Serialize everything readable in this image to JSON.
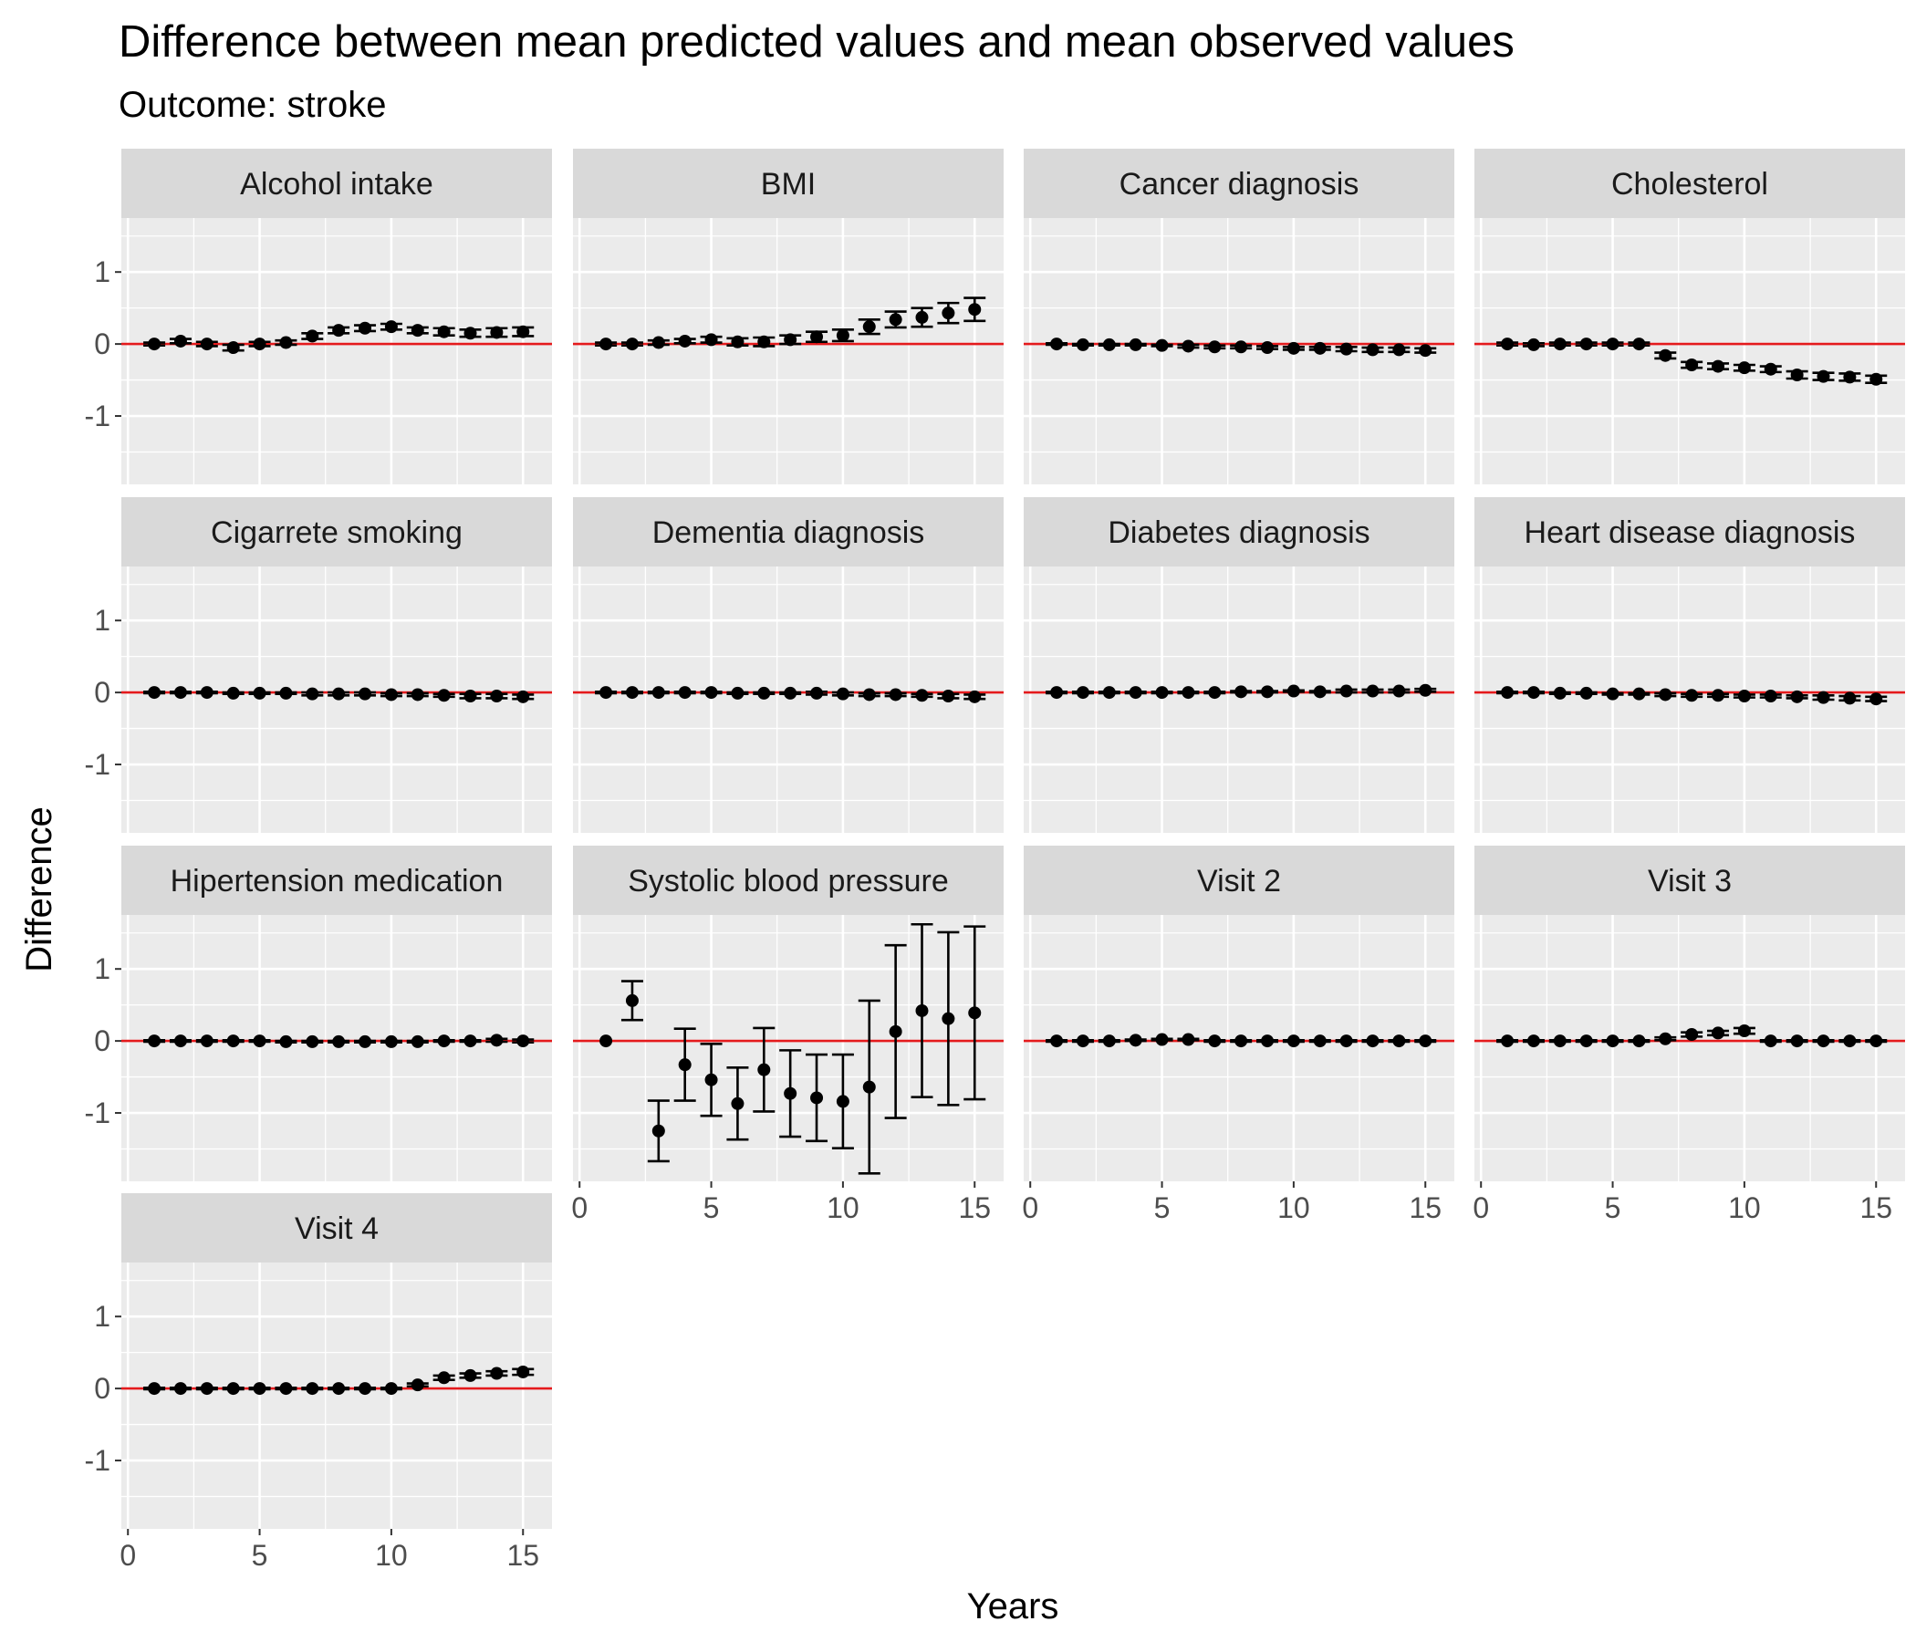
{
  "chart_data": {
    "type": "scatter",
    "title": "Difference between mean predicted values and mean observed values",
    "subtitle": "Outcome: stroke",
    "xlabel": "Years",
    "ylabel": "Difference",
    "xlim": [
      -0.25,
      16.1
    ],
    "ylim": [
      -1.95,
      1.75
    ],
    "x_ticks": [
      0,
      5,
      10,
      15
    ],
    "y_ticks": [
      1,
      0,
      -1
    ],
    "y_tick_labels": [
      "1",
      "0",
      "-1"
    ],
    "grid": true,
    "reference_line": 0,
    "colors": {
      "panel_bg": "#ebebeb",
      "strip_bg": "#d9d9d9",
      "grid": "#ffffff",
      "reference_line": "#e41a1c",
      "points": "#000000"
    },
    "x": [
      1,
      2,
      3,
      4,
      5,
      6,
      7,
      8,
      9,
      10,
      11,
      12,
      13,
      14,
      15
    ],
    "facets": [
      {
        "label": "Alcohol intake",
        "y": [
          0.0,
          0.04,
          0.0,
          -0.05,
          0.0,
          0.02,
          0.11,
          0.19,
          0.22,
          0.24,
          0.19,
          0.17,
          0.15,
          0.16,
          0.17
        ],
        "err": [
          0.02,
          0.03,
          0.03,
          0.04,
          0.03,
          0.03,
          0.04,
          0.04,
          0.04,
          0.04,
          0.04,
          0.05,
          0.05,
          0.06,
          0.06
        ]
      },
      {
        "label": "BMI",
        "y": [
          0.0,
          0.0,
          0.02,
          0.04,
          0.06,
          0.03,
          0.03,
          0.06,
          0.1,
          0.12,
          0.24,
          0.34,
          0.37,
          0.43,
          0.48
        ],
        "err": [
          0.02,
          0.02,
          0.03,
          0.03,
          0.04,
          0.05,
          0.06,
          0.06,
          0.07,
          0.08,
          0.1,
          0.11,
          0.13,
          0.14,
          0.16
        ]
      },
      {
        "label": "Cancer diagnosis",
        "y": [
          0.0,
          -0.01,
          -0.01,
          -0.01,
          -0.02,
          -0.03,
          -0.04,
          -0.04,
          -0.05,
          -0.06,
          -0.06,
          -0.07,
          -0.08,
          -0.08,
          -0.09
        ],
        "err": [
          0.01,
          0.01,
          0.01,
          0.01,
          0.01,
          0.02,
          0.02,
          0.02,
          0.02,
          0.02,
          0.02,
          0.03,
          0.03,
          0.03,
          0.03
        ]
      },
      {
        "label": "Cholesterol",
        "y": [
          0.0,
          -0.01,
          0.0,
          0.0,
          0.0,
          0.0,
          -0.16,
          -0.29,
          -0.31,
          -0.33,
          -0.35,
          -0.43,
          -0.45,
          -0.46,
          -0.49
        ],
        "err": [
          0.02,
          0.02,
          0.02,
          0.02,
          0.02,
          0.02,
          0.04,
          0.04,
          0.04,
          0.04,
          0.04,
          0.05,
          0.05,
          0.05,
          0.05
        ]
      },
      {
        "label": "Cigarrete smoking",
        "y": [
          0.0,
          0.0,
          0.0,
          -0.01,
          -0.01,
          -0.01,
          -0.02,
          -0.02,
          -0.02,
          -0.03,
          -0.03,
          -0.04,
          -0.05,
          -0.05,
          -0.06
        ],
        "err": [
          0.01,
          0.01,
          0.01,
          0.01,
          0.01,
          0.01,
          0.02,
          0.02,
          0.02,
          0.02,
          0.02,
          0.02,
          0.03,
          0.03,
          0.03
        ]
      },
      {
        "label": "Dementia diagnosis",
        "y": [
          0.0,
          0.0,
          0.0,
          0.0,
          0.0,
          -0.01,
          -0.01,
          -0.01,
          -0.01,
          -0.02,
          -0.03,
          -0.03,
          -0.04,
          -0.05,
          -0.06
        ],
        "err": [
          0.01,
          0.01,
          0.01,
          0.01,
          0.01,
          0.01,
          0.01,
          0.01,
          0.02,
          0.02,
          0.02,
          0.02,
          0.02,
          0.03,
          0.03
        ]
      },
      {
        "label": "Diabetes diagnosis",
        "y": [
          0.0,
          0.0,
          0.0,
          0.0,
          0.0,
          0.0,
          0.0,
          0.01,
          0.01,
          0.02,
          0.01,
          0.02,
          0.02,
          0.02,
          0.03
        ],
        "err": [
          0.01,
          0.01,
          0.01,
          0.01,
          0.01,
          0.01,
          0.01,
          0.01,
          0.01,
          0.01,
          0.01,
          0.02,
          0.02,
          0.02,
          0.02
        ]
      },
      {
        "label": "Heart disease diagnosis",
        "y": [
          0.0,
          0.0,
          -0.01,
          -0.01,
          -0.02,
          -0.02,
          -0.03,
          -0.04,
          -0.04,
          -0.05,
          -0.05,
          -0.06,
          -0.07,
          -0.08,
          -0.09
        ],
        "err": [
          0.01,
          0.01,
          0.01,
          0.01,
          0.01,
          0.01,
          0.02,
          0.02,
          0.02,
          0.02,
          0.02,
          0.02,
          0.03,
          0.03,
          0.03
        ]
      },
      {
        "label": "Hipertension medication",
        "y": [
          0.0,
          0.0,
          0.0,
          0.0,
          0.0,
          -0.01,
          -0.01,
          -0.01,
          -0.01,
          -0.01,
          -0.01,
          0.0,
          0.0,
          0.01,
          0.0
        ],
        "err": [
          0.01,
          0.01,
          0.01,
          0.01,
          0.01,
          0.01,
          0.01,
          0.01,
          0.01,
          0.01,
          0.01,
          0.01,
          0.01,
          0.02,
          0.02
        ]
      },
      {
        "label": "Systolic blood pressure",
        "y": [
          0.0,
          0.56,
          -1.25,
          -0.33,
          -0.54,
          -0.87,
          -0.4,
          -0.73,
          -0.79,
          -0.84,
          -0.64,
          0.13,
          0.42,
          0.31,
          0.39
        ],
        "err": [
          0.0,
          0.27,
          0.42,
          0.5,
          0.5,
          0.5,
          0.58,
          0.6,
          0.6,
          0.65,
          1.2,
          1.2,
          1.2,
          1.2,
          1.2
        ]
      },
      {
        "label": "Visit 2",
        "y": [
          0.0,
          0.0,
          0.0,
          0.01,
          0.02,
          0.02,
          0.0,
          0.0,
          0.0,
          0.0,
          0.0,
          0.0,
          0.0,
          0.0,
          0.0
        ],
        "err": [
          0.01,
          0.01,
          0.01,
          0.01,
          0.01,
          0.01,
          0.01,
          0.01,
          0.01,
          0.01,
          0.01,
          0.01,
          0.01,
          0.01,
          0.01
        ]
      },
      {
        "label": "Visit 3",
        "y": [
          0.0,
          0.0,
          0.0,
          0.0,
          0.0,
          0.0,
          0.03,
          0.09,
          0.11,
          0.14,
          0.0,
          0.0,
          0.0,
          0.0,
          0.0
        ],
        "err": [
          0.01,
          0.01,
          0.01,
          0.01,
          0.01,
          0.01,
          0.02,
          0.03,
          0.03,
          0.04,
          0.01,
          0.01,
          0.01,
          0.01,
          0.01
        ]
      },
      {
        "label": "Visit 4",
        "y": [
          0.0,
          0.0,
          0.0,
          0.0,
          0.0,
          0.0,
          0.0,
          0.0,
          0.0,
          0.0,
          0.05,
          0.15,
          0.18,
          0.21,
          0.23
        ],
        "err": [
          0.01,
          0.01,
          0.01,
          0.01,
          0.01,
          0.01,
          0.01,
          0.01,
          0.01,
          0.01,
          0.02,
          0.03,
          0.03,
          0.03,
          0.04
        ]
      }
    ]
  }
}
